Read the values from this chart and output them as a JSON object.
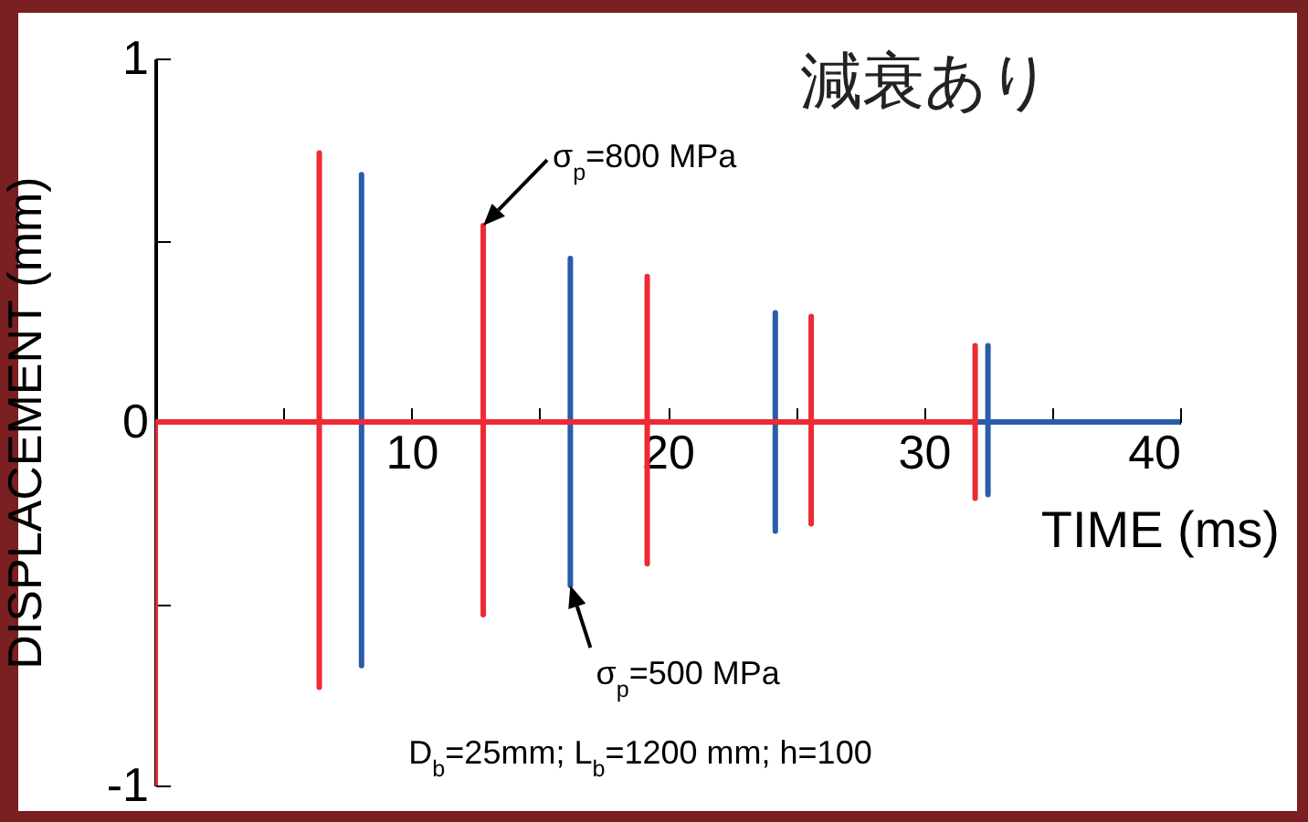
{
  "chart_data": {
    "type": "line",
    "title": "減衰あり",
    "xlabel": "TIME (ms)",
    "ylabel": "DISPLACEMENT (mm)",
    "xlim": [
      0,
      40
    ],
    "ylim": [
      -1,
      1
    ],
    "xticks": [
      {
        "value": 5,
        "label": null
      },
      10,
      {
        "value": 15,
        "label": null
      },
      20,
      {
        "value": 25,
        "label": null
      },
      30,
      {
        "value": 35,
        "label": null
      },
      40
    ],
    "yticks": [
      -1,
      {
        "value": -0.5,
        "label": null
      },
      0,
      {
        "value": 0.5,
        "label": null
      },
      1
    ],
    "grid": false,
    "legend": false,
    "marker": "none",
    "line_style": "solid",
    "series": [
      {
        "color": "#2a5caa",
        "x": [
          0,
          8.05,
          8.05,
          8.05,
          8.05,
          16.2,
          16.2,
          16.2,
          16.2,
          24.2,
          24.2,
          24.2,
          24.2,
          32.5,
          32.5,
          32.5,
          32.5,
          40
        ],
        "values": [
          0,
          0,
          0.68,
          -0.67,
          0,
          0,
          0.45,
          -0.45,
          0,
          0,
          0.3,
          -0.3,
          0,
          0,
          0.21,
          -0.2,
          0,
          0
        ]
      },
      {
        "color": "#ee2a35",
        "x": [
          0,
          0,
          0,
          6.4,
          6.4,
          6.4,
          6.4,
          12.8,
          12.8,
          12.8,
          12.8,
          19.2,
          19.2,
          19.2,
          19.2,
          25.6,
          25.6,
          25.6,
          25.6,
          32.0,
          32.0,
          32.0,
          32.0
        ],
        "values": [
          0,
          -1,
          0,
          0,
          0.74,
          -0.73,
          0,
          0,
          0.54,
          -0.53,
          0,
          0,
          0.4,
          -0.39,
          0,
          0,
          0.29,
          -0.28,
          0,
          0,
          0.21,
          -0.21,
          0
        ]
      }
    ],
    "annotations": [
      {
        "text": "σ$_{p}$=800 MPa",
        "x": 12.8,
        "y": 0.54
      },
      {
        "text": "σ$_{p}$=500 MPa",
        "x": 16.2,
        "y": -0.45
      },
      "D$_{b}$=25mm; L$_{b}$=1200 mm; h=100"
    ]
  }
}
